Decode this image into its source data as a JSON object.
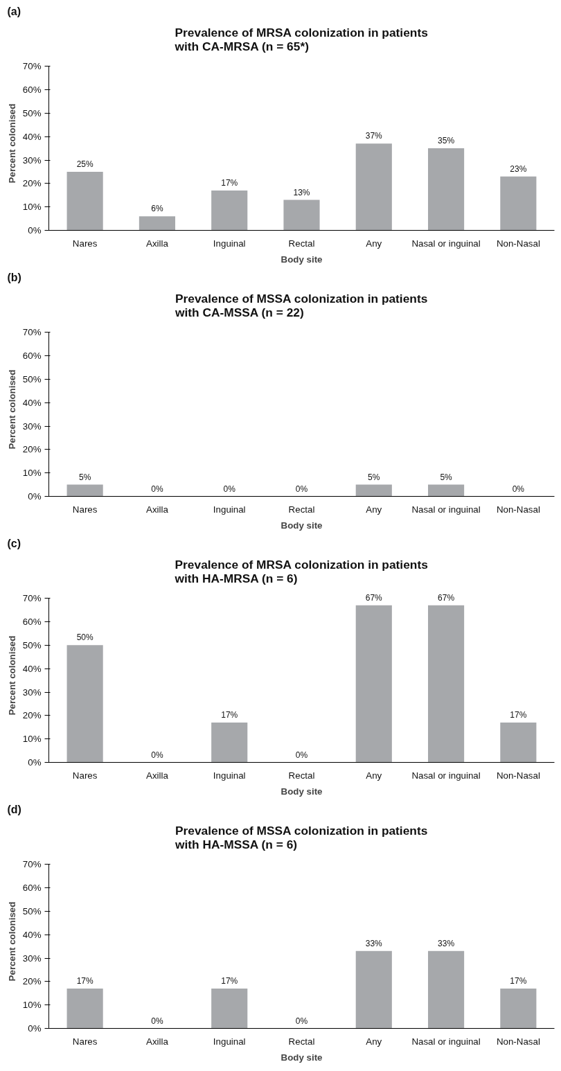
{
  "chart_data": [
    {
      "type": "bar",
      "title": "Prevalence of MRSA colonization in patients with CA-MRSA (n = 65*)",
      "annotations": [
        "(a)"
      ],
      "xlabel": "Body site",
      "ylabel": "Percent colonised",
      "categories": [
        "Nares",
        "Axilla",
        "Inguinal",
        "Rectal",
        "Any",
        "Nasal or inguinal",
        "Non-Nasal"
      ],
      "values": [
        25,
        6,
        17,
        13,
        37,
        35,
        23
      ],
      "value_labels": [
        "25%",
        "6%",
        "17%",
        "13%",
        "37%",
        "35%",
        "23%"
      ],
      "color": "#a6a8ab",
      "ylim": [
        0,
        70
      ],
      "yticks": [
        {
          "value": 0,
          "label": "0%"
        },
        {
          "value": 10,
          "label": "10%"
        },
        {
          "value": 20,
          "label": "20%"
        },
        {
          "value": 30,
          "label": "30%"
        },
        {
          "value": 40,
          "label": "40%"
        },
        {
          "value": 50,
          "label": "50%"
        },
        {
          "value": 60,
          "label": "60%"
        },
        {
          "value": 70,
          "label": "70%"
        }
      ]
    },
    {
      "type": "bar",
      "title": "Prevalence of MSSA colonization in patients with CA-MSSA (n = 22)",
      "annotations": [
        "(b)"
      ],
      "xlabel": "Body site",
      "ylabel": "Percent colonised",
      "categories": [
        "Nares",
        "Axilla",
        "Inguinal",
        "Rectal",
        "Any",
        "Nasal or inguinal",
        "Non-Nasal"
      ],
      "values": [
        5,
        0,
        0,
        0,
        5,
        5,
        0
      ],
      "value_labels": [
        "5%",
        "0%",
        "0%",
        "0%",
        "5%",
        "5%",
        "0%"
      ],
      "color": "#a6a8ab",
      "ylim": [
        0,
        70
      ],
      "yticks": [
        {
          "value": 0,
          "label": "0%"
        },
        {
          "value": 10,
          "label": "10%"
        },
        {
          "value": 20,
          "label": "20%"
        },
        {
          "value": 30,
          "label": "30%"
        },
        {
          "value": 40,
          "label": "40%"
        },
        {
          "value": 50,
          "label": "50%"
        },
        {
          "value": 60,
          "label": "60%"
        },
        {
          "value": 70,
          "label": "70%"
        }
      ]
    },
    {
      "type": "bar",
      "title": "Prevalence of MRSA colonization in patients with HA-MRSA (n = 6)",
      "annotations": [
        "(c)"
      ],
      "xlabel": "Body site",
      "ylabel": "Percent colonised",
      "categories": [
        "Nares",
        "Axilla",
        "Inguinal",
        "Rectal",
        "Any",
        "Nasal or inguinal",
        "Non-Nasal"
      ],
      "values": [
        50,
        0,
        17,
        0,
        67,
        67,
        17
      ],
      "value_labels": [
        "50%",
        "0%",
        "17%",
        "0%",
        "67%",
        "67%",
        "17%"
      ],
      "color": "#a6a8ab",
      "ylim": [
        0,
        70
      ],
      "yticks": [
        {
          "value": 0,
          "label": "0%"
        },
        {
          "value": 10,
          "label": "10%"
        },
        {
          "value": 20,
          "label": "20%"
        },
        {
          "value": 30,
          "label": "30%"
        },
        {
          "value": 40,
          "label": "40%"
        },
        {
          "value": 50,
          "label": "50%"
        },
        {
          "value": 60,
          "label": "60%"
        },
        {
          "value": 70,
          "label": "70%"
        }
      ]
    },
    {
      "type": "bar",
      "title": "Prevalence of MSSA colonization in patients with HA-MSSA (n = 6)",
      "annotations": [
        "(d)"
      ],
      "xlabel": "Body site",
      "ylabel": "Percent colonised",
      "categories": [
        "Nares",
        "Axilla",
        "Inguinal",
        "Rectal",
        "Any",
        "Nasal or inguinal",
        "Non-Nasal"
      ],
      "values": [
        17,
        0,
        17,
        0,
        33,
        33,
        17
      ],
      "value_labels": [
        "17%",
        "0%",
        "17%",
        "0%",
        "33%",
        "33%",
        "17%"
      ],
      "color": "#a6a8ab",
      "ylim": [
        0,
        70
      ],
      "yticks": [
        {
          "value": 0,
          "label": "0%"
        },
        {
          "value": 10,
          "label": "10%"
        },
        {
          "value": 20,
          "label": "20%"
        },
        {
          "value": 30,
          "label": "30%"
        },
        {
          "value": 40,
          "label": "40%"
        },
        {
          "value": 50,
          "label": "50%"
        },
        {
          "value": 60,
          "label": "60%"
        },
        {
          "value": 70,
          "label": "70%"
        }
      ]
    }
  ]
}
